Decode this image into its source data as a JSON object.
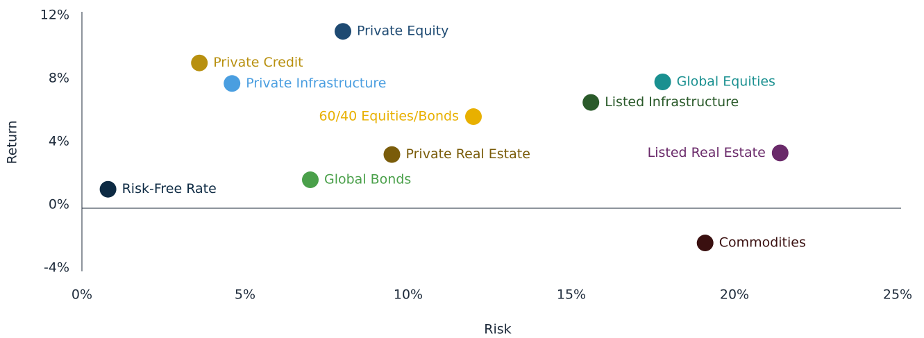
{
  "chart_data": {
    "type": "scatter",
    "x_label": "Risk",
    "y_label": "Return",
    "xlim": [
      0,
      25
    ],
    "ylim": [
      -4,
      12
    ],
    "xticks": [
      {
        "value": 0,
        "label": "0%"
      },
      {
        "value": 5,
        "label": "5%"
      },
      {
        "value": 10,
        "label": "10%"
      },
      {
        "value": 15,
        "label": "15%"
      },
      {
        "value": 20,
        "label": "20%"
      },
      {
        "value": 25,
        "label": "25%"
      }
    ],
    "yticks": [
      {
        "value": -4,
        "label": "-4%"
      },
      {
        "value": 0,
        "label": "0%"
      },
      {
        "value": 4,
        "label": "4%"
      },
      {
        "value": 8,
        "label": "8%"
      },
      {
        "value": 12,
        "label": "12%"
      }
    ],
    "series": [
      {
        "name": "Risk-Free Rate",
        "color": "#0d2a43",
        "x": [
          0.8
        ],
        "values": [
          1.2
        ]
      },
      {
        "name": "Private Credit",
        "color": "#b8900f",
        "x": [
          3.6
        ],
        "values": [
          9.2
        ]
      },
      {
        "name": "Private Infrastructure",
        "color": "#4a9ee0",
        "x": [
          4.6
        ],
        "values": [
          7.9
        ]
      },
      {
        "name": "Private Equity",
        "color": "#1e4a72",
        "x": [
          8.0
        ],
        "values": [
          11.2
        ]
      },
      {
        "name": "Global Bonds",
        "color": "#4aa04a",
        "x": [
          7.0
        ],
        "values": [
          1.8
        ]
      },
      {
        "name": "Private Real Estate",
        "color": "#7a5c0a",
        "x": [
          9.5
        ],
        "values": [
          3.4
        ]
      },
      {
        "name": "60/40 Equities/Bonds",
        "color": "#e8b000",
        "x": [
          12.0
        ],
        "values": [
          5.8
        ]
      },
      {
        "name": "Listed Infrastructure",
        "color": "#2a5a2a",
        "x": [
          15.6
        ],
        "values": [
          6.7
        ]
      },
      {
        "name": "Global Equities",
        "color": "#1a9090",
        "x": [
          17.8
        ],
        "values": [
          8.0
        ]
      },
      {
        "name": "Listed Real Estate",
        "color": "#6a2a6a",
        "x": [
          21.4
        ],
        "values": [
          3.5
        ]
      },
      {
        "name": "Commodities",
        "color": "#3a1010",
        "x": [
          19.1
        ],
        "values": [
          -2.2
        ]
      }
    ]
  }
}
